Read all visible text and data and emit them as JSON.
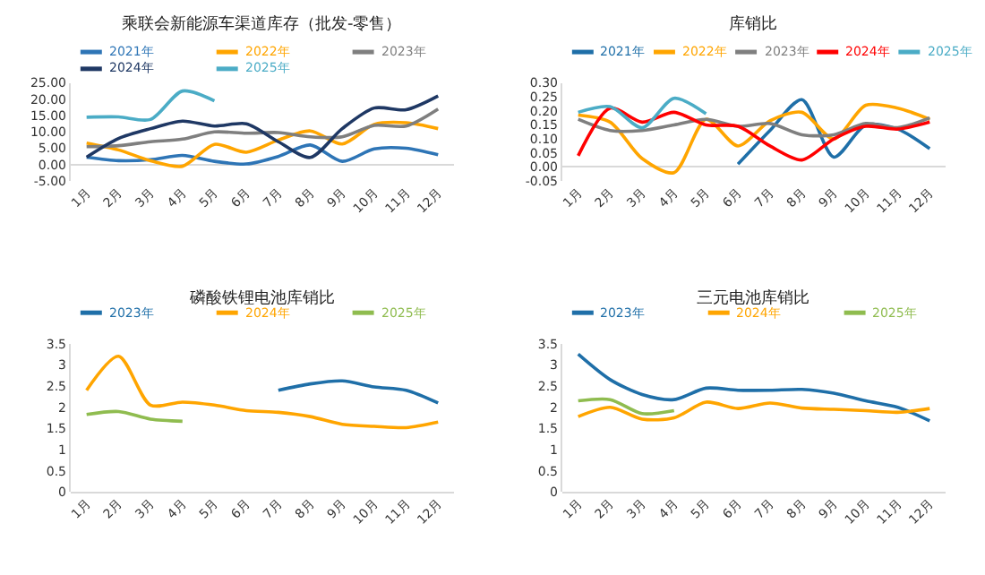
{
  "chart_data": [
    {
      "type": "line",
      "title": "乘联会新能源车渠道库存（批发-零售）",
      "categories": [
        "1月",
        "2月",
        "3月",
        "4月",
        "5月",
        "6月",
        "7月",
        "8月",
        "9月",
        "10月",
        "11月",
        "12月"
      ],
      "series": [
        {
          "name": "2021年",
          "color": "#2e75b6",
          "values": [
            2.3,
            1.2,
            1.5,
            2.8,
            1.0,
            0.2,
            2.5,
            6.0,
            1.0,
            4.8,
            5.0,
            3.0
          ]
        },
        {
          "name": "2022年",
          "color": "#ffa500",
          "values": [
            6.6,
            4.5,
            1.2,
            -0.5,
            6.2,
            3.8,
            7.5,
            10.3,
            6.3,
            12.3,
            12.8,
            11.0
          ]
        },
        {
          "name": "2023年",
          "color": "#7f7f7f",
          "values": [
            5.5,
            5.8,
            7.0,
            7.8,
            10.0,
            9.6,
            9.8,
            8.5,
            8.5,
            12.0,
            11.8,
            17.0
          ]
        },
        {
          "name": "2024年",
          "color": "#1f3864",
          "values": [
            2.3,
            8.0,
            11.0,
            13.3,
            11.8,
            12.5,
            7.0,
            2.2,
            11.0,
            17.3,
            16.8,
            21.0
          ]
        },
        {
          "name": "2025年",
          "color": "#4bacc6",
          "values": [
            14.5,
            14.6,
            13.8,
            22.5,
            19.5,
            null,
            null,
            null,
            null,
            null,
            null,
            null
          ]
        }
      ],
      "ylim": [
        -5,
        25
      ],
      "yticks": [
        {
          "value": -5,
          "label": "-5.00"
        },
        {
          "value": 0,
          "label": "0.00"
        },
        {
          "value": 5,
          "label": "5.00"
        },
        {
          "value": 10,
          "label": "10.00"
        },
        {
          "value": 15,
          "label": "15.00"
        },
        {
          "value": 20,
          "label": "20.00"
        },
        {
          "value": 25,
          "label": "25.00"
        }
      ],
      "grid": false,
      "legend": "top"
    },
    {
      "type": "line",
      "title": "库销比",
      "categories": [
        "1月",
        "2月",
        "3月",
        "4月",
        "5月",
        "6月",
        "7月",
        "8月",
        "9月",
        "10月",
        "11月",
        "12月"
      ],
      "series": [
        {
          "name": "2021年",
          "color": "#1f6fa8",
          "values": [
            null,
            null,
            null,
            null,
            null,
            0.01,
            0.13,
            0.24,
            0.035,
            0.15,
            0.135,
            0.065
          ]
        },
        {
          "name": "2022年",
          "color": "#ffa500",
          "values": [
            0.185,
            0.16,
            0.03,
            -0.02,
            0.17,
            0.075,
            0.165,
            0.195,
            0.1,
            0.22,
            0.21,
            0.17
          ]
        },
        {
          "name": "2023年",
          "color": "#7f7f7f",
          "values": [
            0.17,
            0.13,
            0.13,
            0.15,
            0.17,
            0.145,
            0.155,
            0.115,
            0.115,
            0.155,
            0.14,
            0.175
          ]
        },
        {
          "name": "2024年",
          "color": "#ff0000",
          "values": [
            0.04,
            0.21,
            0.16,
            0.195,
            0.15,
            0.145,
            0.075,
            0.025,
            0.1,
            0.145,
            0.135,
            0.16
          ]
        },
        {
          "name": "2025年",
          "color": "#4bacc6",
          "values": [
            0.195,
            0.215,
            0.14,
            0.245,
            0.19,
            null,
            null,
            null,
            null,
            null,
            null,
            null
          ]
        }
      ],
      "ylim": [
        -0.05,
        0.3
      ],
      "yticks": [
        {
          "value": -0.05,
          "label": "-0.05"
        },
        {
          "value": 0,
          "label": "0.00"
        },
        {
          "value": 0.05,
          "label": "0.05"
        },
        {
          "value": 0.1,
          "label": "0.10"
        },
        {
          "value": 0.15,
          "label": "0.15"
        },
        {
          "value": 0.2,
          "label": "0.20"
        },
        {
          "value": 0.25,
          "label": "0.25"
        },
        {
          "value": 0.3,
          "label": "0.30"
        }
      ],
      "grid": false,
      "legend": "top"
    },
    {
      "type": "line",
      "title": "磷酸铁锂电池库销比",
      "categories": [
        "1月",
        "2月",
        "3月",
        "4月",
        "5月",
        "6月",
        "7月",
        "8月",
        "9月",
        "10月",
        "11月",
        "12月"
      ],
      "series": [
        {
          "name": "2023年",
          "color": "#1f6fa8",
          "values": [
            null,
            null,
            null,
            null,
            null,
            null,
            2.4,
            2.55,
            2.62,
            2.48,
            2.4,
            2.1
          ]
        },
        {
          "name": "2024年",
          "color": "#ffa500",
          "values": [
            2.4,
            3.2,
            2.05,
            2.12,
            2.05,
            1.92,
            1.88,
            1.78,
            1.6,
            1.55,
            1.52,
            1.65
          ]
        },
        {
          "name": "2025年",
          "color": "#8fbc4f",
          "values": [
            1.83,
            1.9,
            1.72,
            1.67,
            null,
            null,
            null,
            null,
            null,
            null,
            null,
            null
          ]
        }
      ],
      "ylim": [
        0,
        3.5
      ],
      "yticks": [
        0,
        0.5,
        1,
        1.5,
        2,
        2.5,
        3,
        3.5
      ],
      "grid": false,
      "legend": "top"
    },
    {
      "type": "line",
      "title": "三元电池库销比",
      "categories": [
        "1月",
        "2月",
        "3月",
        "4月",
        "5月",
        "6月",
        "7月",
        "8月",
        "9月",
        "10月",
        "11月",
        "12月"
      ],
      "series": [
        {
          "name": "2023年",
          "color": "#1f6fa8",
          "values": [
            3.25,
            2.65,
            2.3,
            2.18,
            2.45,
            2.4,
            2.4,
            2.42,
            2.33,
            2.15,
            2.0,
            1.68
          ]
        },
        {
          "name": "2024年",
          "color": "#ffa500",
          "values": [
            1.78,
            2.0,
            1.72,
            1.75,
            2.12,
            1.97,
            2.1,
            1.98,
            1.95,
            1.92,
            1.88,
            1.97
          ]
        },
        {
          "name": "2025年",
          "color": "#8fbc4f",
          "values": [
            2.15,
            2.18,
            1.85,
            1.92,
            null,
            null,
            null,
            null,
            null,
            null,
            null,
            null
          ]
        }
      ],
      "ylim": [
        0,
        3.5
      ],
      "yticks": [
        0,
        0.5,
        1,
        1.5,
        2,
        2.5,
        3,
        3.5
      ],
      "grid": false,
      "legend": "top"
    }
  ]
}
